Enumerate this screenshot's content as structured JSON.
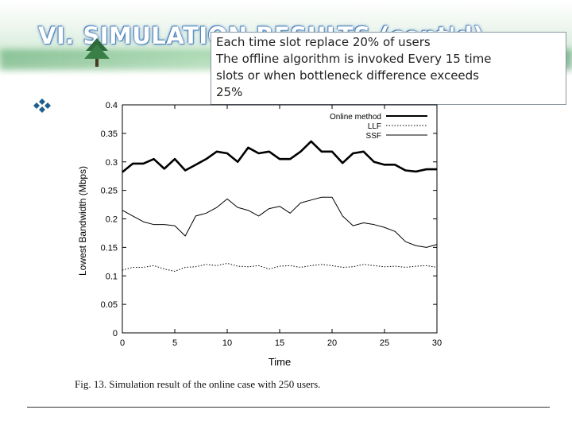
{
  "slide": {
    "title": "VI. SIMULATION RESULTS (cont'd)",
    "colors": {
      "title_fill": "#ffffff",
      "title_outline": "#4a7fb8",
      "header_green": "#4ca05f",
      "bullet": "#1f5f8f"
    },
    "bullet_icon": "diamond-cluster-icon",
    "header_icon": "tree-icon"
  },
  "callout": {
    "lines": [
      "Each time slot replace 20% of users",
      "The offline algorithm is invoked Every 15 time",
      "slots or when bottleneck difference exceeds",
      "25%"
    ]
  },
  "figure": {
    "caption": "Fig. 13.   Simulation result of the online case with 250 users."
  },
  "chart_data": {
    "type": "line",
    "title": "",
    "xlabel": "Time",
    "ylabel": "Lowest Bandwidth (Mbps)",
    "xlim": [
      0,
      30
    ],
    "ylim": [
      0,
      0.4
    ],
    "xticks": [
      0,
      5,
      10,
      15,
      20,
      25,
      30
    ],
    "yticks": [
      0,
      0.05,
      0.1,
      0.15,
      0.2,
      0.25,
      0.3,
      0.35,
      0.4
    ],
    "ytick_labels": [
      "0",
      "0.05",
      "0.1",
      "0.15",
      "0.2",
      "0.25",
      "0.3",
      "0.35",
      "0.4"
    ],
    "legend_position": "top-right",
    "grid": false,
    "x": [
      0,
      1,
      2,
      3,
      4,
      5,
      6,
      7,
      8,
      9,
      10,
      11,
      12,
      13,
      14,
      15,
      16,
      17,
      18,
      19,
      20,
      21,
      22,
      23,
      24,
      25,
      26,
      27,
      28,
      29,
      30
    ],
    "series": [
      {
        "name": "Online method",
        "style": "thick-solid",
        "color": "#000000",
        "values": [
          0.282,
          0.297,
          0.297,
          0.305,
          0.288,
          0.305,
          0.285,
          0.295,
          0.305,
          0.318,
          0.315,
          0.3,
          0.325,
          0.315,
          0.318,
          0.305,
          0.305,
          0.318,
          0.336,
          0.318,
          0.318,
          0.298,
          0.315,
          0.318,
          0.3,
          0.295,
          0.295,
          0.285,
          0.283,
          0.287,
          0.287
        ]
      },
      {
        "name": "LLF",
        "style": "dotted",
        "color": "#000000",
        "values": [
          0.11,
          0.115,
          0.115,
          0.118,
          0.112,
          0.108,
          0.115,
          0.116,
          0.12,
          0.118,
          0.122,
          0.117,
          0.116,
          0.118,
          0.112,
          0.117,
          0.118,
          0.115,
          0.118,
          0.12,
          0.118,
          0.115,
          0.116,
          0.12,
          0.118,
          0.116,
          0.117,
          0.115,
          0.117,
          0.118,
          0.115
        ]
      },
      {
        "name": "SSF",
        "style": "thin-solid",
        "color": "#000000",
        "values": [
          0.215,
          0.205,
          0.195,
          0.19,
          0.19,
          0.188,
          0.17,
          0.205,
          0.21,
          0.22,
          0.235,
          0.22,
          0.215,
          0.205,
          0.218,
          0.222,
          0.21,
          0.228,
          0.233,
          0.238,
          0.238,
          0.205,
          0.188,
          0.193,
          0.19,
          0.185,
          0.178,
          0.16,
          0.153,
          0.15,
          0.155
        ]
      }
    ]
  }
}
